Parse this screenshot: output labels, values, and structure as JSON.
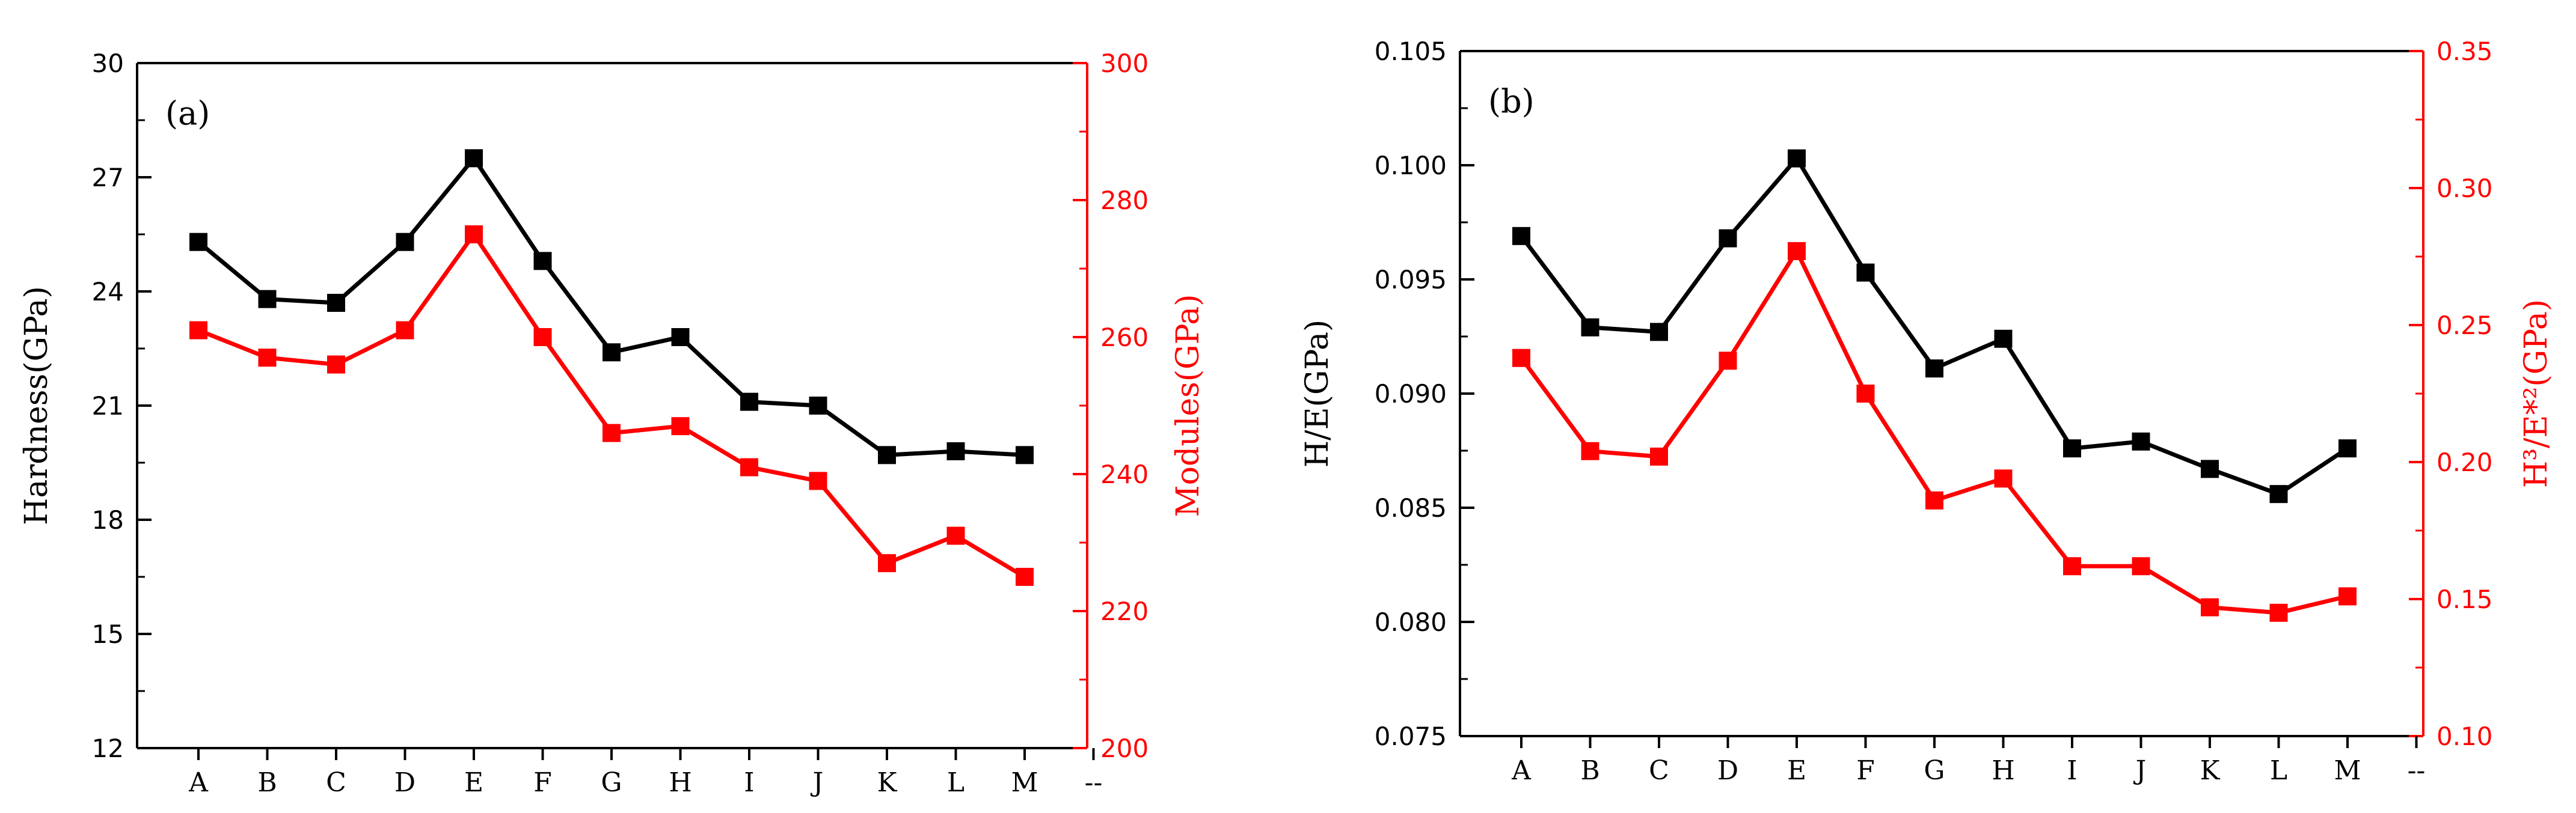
{
  "colors": {
    "primary": "#000000",
    "secondary": "#ff0000"
  },
  "chart_data": [
    {
      "type": "line",
      "panel_label": "(a)",
      "categories": [
        "A",
        "B",
        "C",
        "D",
        "E",
        "F",
        "G",
        "H",
        "I",
        "J",
        "K",
        "L",
        "M"
      ],
      "trailing_label": "--",
      "left_axis": {
        "label": "Hardness(GPa)",
        "ylim": [
          12,
          30
        ],
        "ticks": [
          12,
          15,
          18,
          21,
          24,
          27,
          30
        ],
        "tick_labels": [
          "12",
          "15",
          "18",
          "21",
          "24",
          "27",
          "30"
        ]
      },
      "right_axis": {
        "label": "Modules(GPa)",
        "ylim": [
          200,
          300
        ],
        "ticks": [
          200,
          220,
          240,
          260,
          280,
          300
        ],
        "tick_labels": [
          "200",
          "220",
          "240",
          "260",
          "280",
          "300"
        ]
      },
      "series": [
        {
          "name": "Hardness",
          "axis": "left",
          "color": "#000000",
          "values": [
            25.3,
            23.8,
            23.7,
            25.3,
            27.5,
            24.8,
            22.4,
            22.8,
            21.1,
            21.0,
            19.7,
            19.8,
            19.7
          ]
        },
        {
          "name": "Modules",
          "axis": "right",
          "color": "#ff0000",
          "values": [
            261,
            257,
            256,
            261,
            275,
            260,
            246,
            247,
            241,
            239,
            227,
            231,
            225
          ]
        }
      ]
    },
    {
      "type": "line",
      "panel_label": "(b)",
      "categories": [
        "A",
        "B",
        "C",
        "D",
        "E",
        "F",
        "G",
        "H",
        "I",
        "J",
        "K",
        "L",
        "M"
      ],
      "trailing_label": "--",
      "left_axis": {
        "label": "H/E(GPa)",
        "ylim": [
          0.075,
          0.105
        ],
        "ticks": [
          0.075,
          0.08,
          0.085,
          0.09,
          0.095,
          0.1,
          0.105
        ],
        "tick_labels": [
          "0.075",
          "0.080",
          "0.085",
          "0.090",
          "0.095",
          "0.100",
          "0.105"
        ]
      },
      "right_axis": {
        "label": "H³/E*²(GPa)",
        "ylim": [
          0.1,
          0.35
        ],
        "ticks": [
          0.1,
          0.15,
          0.2,
          0.25,
          0.3,
          0.35
        ],
        "tick_labels": [
          "0.10",
          "0.15",
          "0.20",
          "0.25",
          "0.30",
          "0.35"
        ]
      },
      "series": [
        {
          "name": "H/E",
          "axis": "left",
          "color": "#000000",
          "values": [
            0.0969,
            0.0929,
            0.0927,
            0.0968,
            0.1003,
            0.0953,
            0.0911,
            0.0924,
            0.0876,
            0.0879,
            0.0867,
            0.0856,
            0.0876
          ]
        },
        {
          "name": "H3/E*2",
          "axis": "right",
          "color": "#ff0000",
          "values": [
            0.238,
            0.204,
            0.202,
            0.237,
            0.277,
            0.225,
            0.186,
            0.194,
            0.162,
            0.162,
            0.147,
            0.145,
            0.151
          ]
        }
      ]
    }
  ]
}
